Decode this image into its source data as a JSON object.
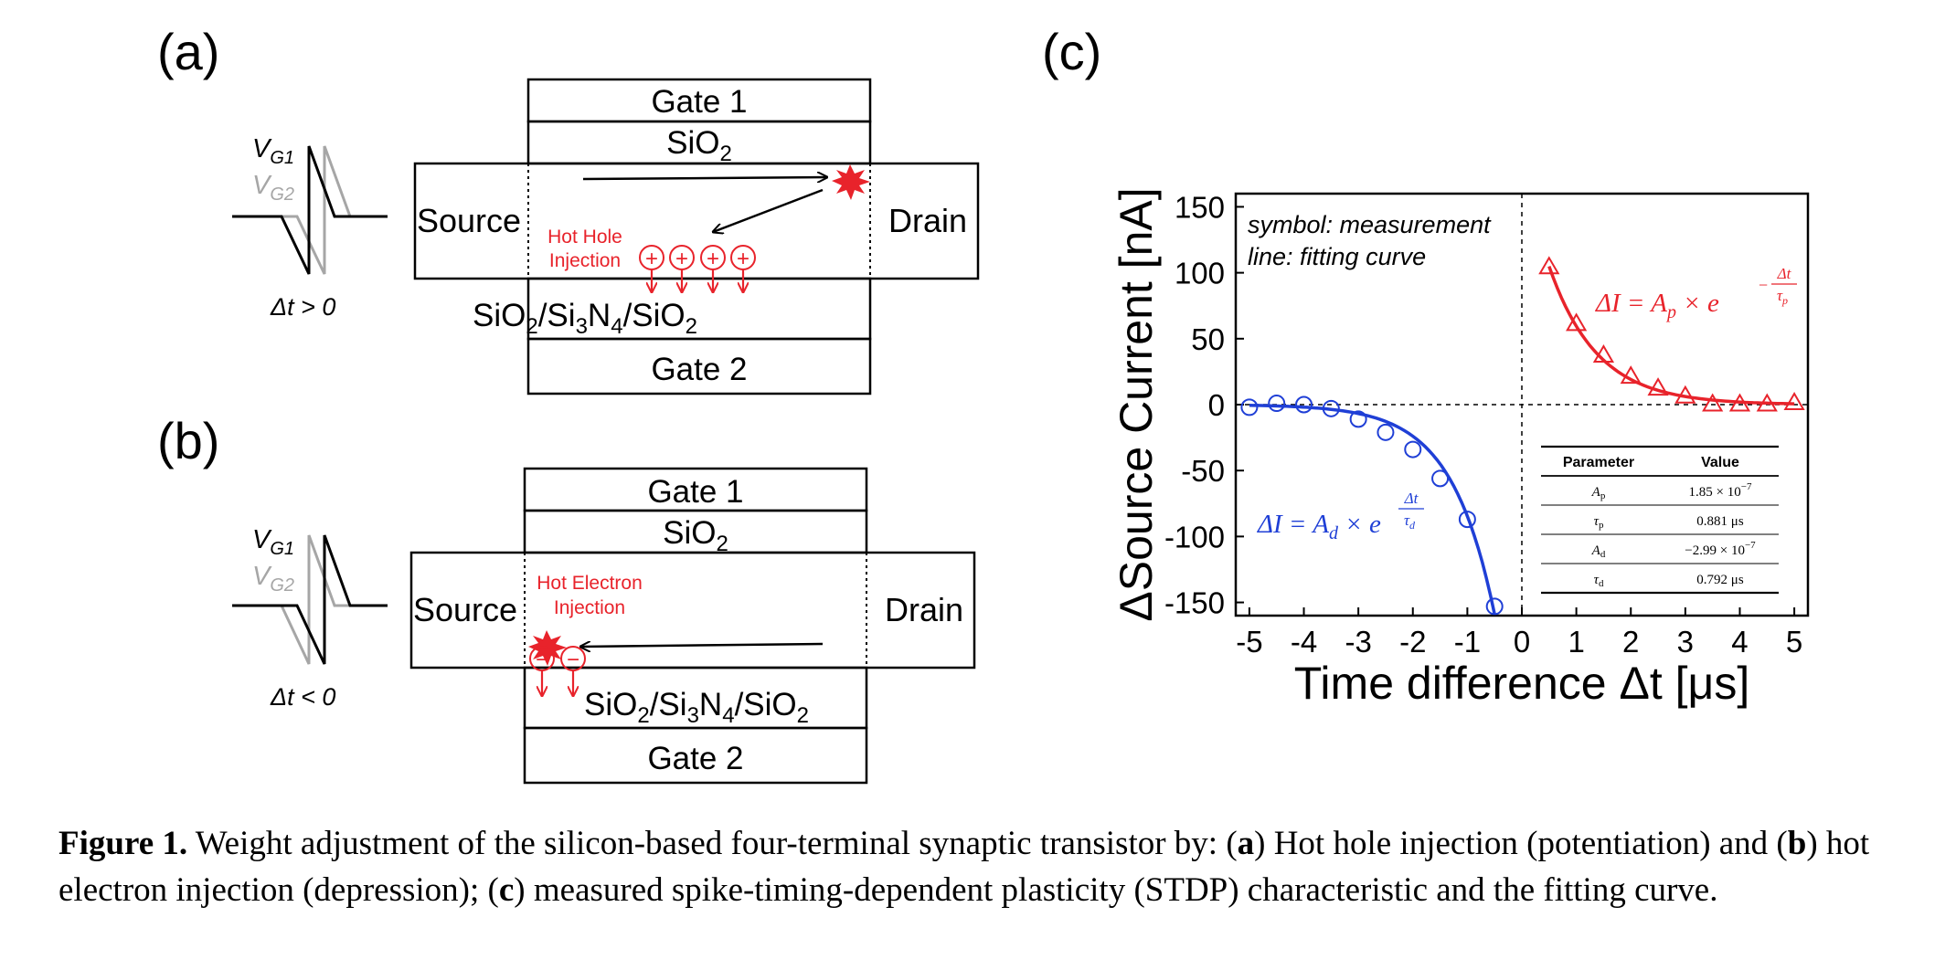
{
  "panel_a": {
    "label": "(a)",
    "vg1": "V",
    "vg1_sub": "G1",
    "vg2": "V",
    "vg2_sub": "G2",
    "dt": "Δt > 0",
    "gate1": "Gate 1",
    "sio2_base": "SiO",
    "sio2_sub": "2",
    "source": "Source",
    "drain": "Drain",
    "inj_line1": "Hot Hole",
    "inj_line2": "Injection",
    "stack": [
      "SiO",
      "2",
      "/Si",
      "3",
      "N",
      "4",
      "/SiO",
      "2"
    ],
    "gate2": "Gate 2",
    "charge_symbol": "+"
  },
  "panel_b": {
    "label": "(b)",
    "vg1": "V",
    "vg1_sub": "G1",
    "vg2": "V",
    "vg2_sub": "G2",
    "dt": "Δt < 0",
    "gate1": "Gate 1",
    "sio2_base": "SiO",
    "sio2_sub": "2",
    "source": "Source",
    "drain": "Drain",
    "inj_line1": "Hot Electron",
    "inj_line2": "Injection",
    "stack": [
      "SiO",
      "2",
      "/Si",
      "3",
      "N",
      "4",
      "/SiO",
      "2"
    ],
    "gate2": "Gate 2",
    "charge_symbol": "−"
  },
  "panel_c": {
    "label": "(c)",
    "note_line1": "symbol: measurement",
    "note_line2": "line: fitting curve",
    "eq_d": {
      "lhs": "ΔI = A",
      "sub": "d",
      "mid": " × e",
      "exp_num": "Δt",
      "exp_den": "τ",
      "exp_den_sub": "d"
    },
    "eq_p": {
      "lhs": "ΔI = A",
      "sub": "p",
      "mid": " × e",
      "exp_sign": "−",
      "exp_num": "Δt",
      "exp_den": "τ",
      "exp_den_sub": "p"
    },
    "table": {
      "headers": [
        "Parameter",
        "Value"
      ],
      "rows": [
        {
          "sym": "A",
          "sub": "p",
          "value": "1.85 × 10",
          "exp": "−7"
        },
        {
          "sym": "τ",
          "sub": "p",
          "value": "0.881  μs",
          "exp": ""
        },
        {
          "sym": "A",
          "sub": "d",
          "value": "−2.99 × 10",
          "exp": "−7"
        },
        {
          "sym": "τ",
          "sub": "d",
          "value": "0.792  μs",
          "exp": ""
        }
      ]
    }
  },
  "chart_data": {
    "type": "scatter",
    "xlabel": "Time difference Δt [μs]",
    "ylabel": "ΔSource Current [nA]",
    "xlim": [
      -5.25,
      5.25
    ],
    "ylim": [
      -160,
      160
    ],
    "xticks": [
      -5,
      -4,
      -3,
      -2,
      -1,
      0,
      1,
      2,
      3,
      4,
      5
    ],
    "yticks": [
      150,
      100,
      50,
      0,
      -50,
      -100,
      -150
    ],
    "grid": false,
    "reference_lines": {
      "x": 0,
      "y": 0,
      "style": "dashed"
    },
    "series": [
      {
        "marker": "circle",
        "color": "#1f3fd6",
        "x": [
          -5,
          -4.5,
          -4,
          -3.5,
          -3,
          -2.5,
          -2,
          -1.5,
          -1,
          -0.5
        ],
        "y": [
          -2,
          1,
          0,
          -3,
          -11,
          -21,
          -34,
          -56,
          -87,
          -153
        ]
      },
      {
        "marker": "triangle",
        "color": "#e8232b",
        "x": [
          0.5,
          1,
          1.5,
          2,
          2.5,
          3,
          3.5,
          4,
          4.5,
          5
        ],
        "y": [
          104,
          61,
          37,
          21,
          12,
          6,
          0,
          0,
          0,
          1
        ]
      }
    ],
    "fits": [
      {
        "color": "#1f3fd6",
        "x_range": [
          -5,
          -0.5
        ],
        "A": -2.99e-07,
        "tau": 0.792
      },
      {
        "color": "#e8232b",
        "x_range": [
          0.5,
          5
        ],
        "A": 1.85e-07,
        "tau": 0.881
      }
    ]
  },
  "caption": {
    "bold_label": "Figure 1.",
    "t1": " Weight adjustment of the silicon-based four-terminal synaptic transistor by: (",
    "a": "a",
    "t2": ") Hot hole injection (potentiation) and (",
    "b": "b",
    "t3": ") hot electron injection (depression); (",
    "c": "c",
    "t4": ") measured spike-timing-dependent plasticity (STDP) characteristic and the fitting curve."
  },
  "colors": {
    "red": "#e8232b",
    "blue": "#1f3fd6",
    "gray": "#a6a6a6"
  }
}
